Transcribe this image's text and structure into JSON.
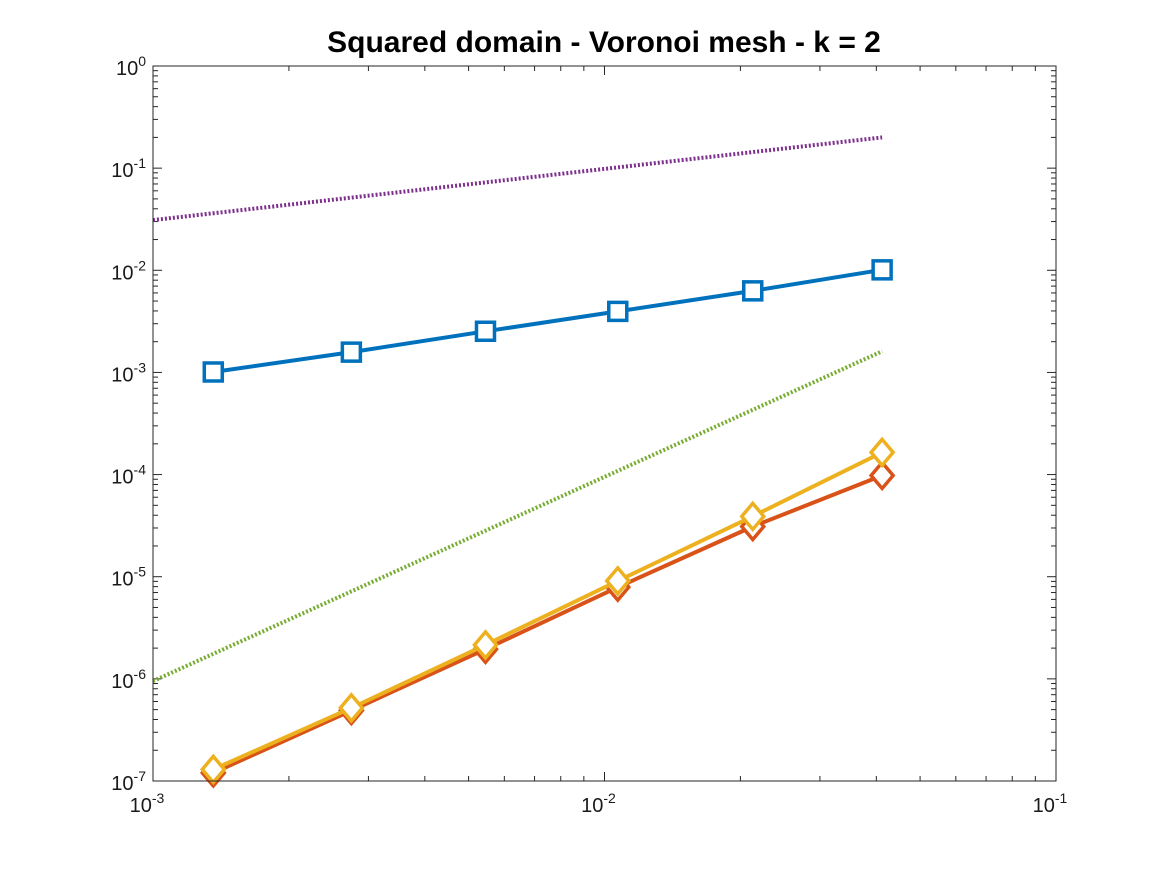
{
  "chart_data": {
    "type": "line",
    "title": "Squared domain - Voronoi mesh - k = 2",
    "xlabel": "",
    "ylabel": "",
    "xscale": "log",
    "yscale": "log",
    "xlim": [
      0.001,
      0.1
    ],
    "ylim": [
      1e-07,
      1
    ],
    "x_ticks": [
      {
        "base": "10",
        "exp": "-3",
        "value": 0.001
      },
      {
        "base": "10",
        "exp": "-2",
        "value": 0.01
      },
      {
        "base": "10",
        "exp": "-1",
        "value": 0.1
      }
    ],
    "y_ticks": [
      {
        "base": "10",
        "exp": "0",
        "value": 1
      },
      {
        "base": "10",
        "exp": "-1",
        "value": 0.1
      },
      {
        "base": "10",
        "exp": "-2",
        "value": 0.01
      },
      {
        "base": "10",
        "exp": "-3",
        "value": 0.001
      },
      {
        "base": "10",
        "exp": "-4",
        "value": 0.0001
      },
      {
        "base": "10",
        "exp": "-5",
        "value": 1e-05
      },
      {
        "base": "10",
        "exp": "-6",
        "value": 1e-06
      },
      {
        "base": "10",
        "exp": "-7",
        "value": 1e-07
      }
    ],
    "grid": false,
    "box": true,
    "series": [
      {
        "color": "#0072BD",
        "marker": "square",
        "style": "solid",
        "x": [
          0.00136,
          0.00275,
          0.00545,
          0.0107,
          0.0213,
          0.0412
        ],
        "y": [
          0.00101,
          0.00158,
          0.00253,
          0.00396,
          0.00629,
          0.0101
        ]
      },
      {
        "color": "#D95319",
        "marker": "diamond",
        "style": "solid",
        "x": [
          0.00136,
          0.00275,
          0.00545,
          0.0107,
          0.0213,
          0.0412
        ],
        "y": [
          1.2e-07,
          4.9e-07,
          1.95e-06,
          7.9e-06,
          3.1e-05,
          9.8e-05
        ]
      },
      {
        "color": "#EDB120",
        "marker": "diamond",
        "style": "solid",
        "x": [
          0.00136,
          0.00275,
          0.00545,
          0.0107,
          0.0213,
          0.0412
        ],
        "y": [
          1.3e-07,
          5.2e-07,
          2.15e-06,
          9.1e-06,
          3.9e-05,
          0.000165
        ]
      },
      {
        "color": "#7E2F8E",
        "marker": "none",
        "style": "dotted",
        "x": [
          0.001,
          0.0412
        ],
        "y": [
          0.031,
          0.2
        ]
      },
      {
        "color": "#77AC30",
        "marker": "none",
        "style": "dotted",
        "x": [
          0.001,
          0.0412
        ],
        "y": [
          9.5e-07,
          0.00161
        ]
      }
    ]
  }
}
